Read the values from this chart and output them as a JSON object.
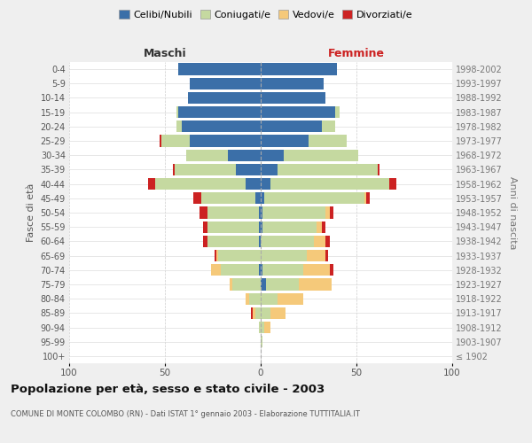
{
  "age_groups": [
    "100+",
    "95-99",
    "90-94",
    "85-89",
    "80-84",
    "75-79",
    "70-74",
    "65-69",
    "60-64",
    "55-59",
    "50-54",
    "45-49",
    "40-44",
    "35-39",
    "30-34",
    "25-29",
    "20-24",
    "15-19",
    "10-14",
    "5-9",
    "0-4"
  ],
  "birth_years": [
    "≤ 1902",
    "1903-1907",
    "1908-1912",
    "1913-1917",
    "1918-1922",
    "1923-1927",
    "1928-1932",
    "1933-1937",
    "1938-1942",
    "1943-1947",
    "1948-1952",
    "1953-1957",
    "1958-1962",
    "1963-1967",
    "1968-1972",
    "1973-1977",
    "1978-1982",
    "1983-1987",
    "1988-1992",
    "1993-1997",
    "1998-2002"
  ],
  "maschi": {
    "celibe": [
      0,
      0,
      0,
      0,
      0,
      0,
      1,
      0,
      1,
      1,
      1,
      3,
      8,
      13,
      17,
      37,
      41,
      43,
      38,
      37,
      43
    ],
    "coniugato": [
      0,
      0,
      1,
      3,
      6,
      15,
      20,
      22,
      27,
      27,
      27,
      28,
      47,
      32,
      22,
      15,
      3,
      1,
      0,
      0,
      0
    ],
    "vedovo": [
      0,
      0,
      0,
      1,
      2,
      1,
      5,
      1,
      0,
      0,
      0,
      0,
      0,
      0,
      0,
      0,
      0,
      0,
      0,
      0,
      0
    ],
    "divorziato": [
      0,
      0,
      0,
      1,
      0,
      0,
      0,
      1,
      2,
      2,
      4,
      4,
      4,
      1,
      0,
      1,
      0,
      0,
      0,
      0,
      0
    ]
  },
  "femmine": {
    "nubile": [
      0,
      0,
      0,
      0,
      0,
      3,
      1,
      0,
      0,
      1,
      1,
      2,
      5,
      9,
      12,
      25,
      32,
      39,
      34,
      33,
      40
    ],
    "coniugata": [
      0,
      1,
      2,
      5,
      9,
      17,
      21,
      24,
      28,
      28,
      33,
      52,
      62,
      52,
      39,
      20,
      7,
      2,
      0,
      0,
      0
    ],
    "vedova": [
      0,
      0,
      3,
      8,
      13,
      17,
      14,
      10,
      6,
      3,
      2,
      1,
      0,
      0,
      0,
      0,
      0,
      0,
      0,
      0,
      0
    ],
    "divorziata": [
      0,
      0,
      0,
      0,
      0,
      0,
      2,
      1,
      2,
      2,
      2,
      2,
      4,
      1,
      0,
      0,
      0,
      0,
      0,
      0,
      0
    ]
  },
  "colors": {
    "celibe": "#3b6fa8",
    "coniugato": "#c5d9a0",
    "vedovo": "#f5c97a",
    "divorziato": "#cc2222"
  },
  "xlim": 100,
  "title": "Popolazione per età, sesso e stato civile - 2003",
  "subtitle": "COMUNE DI MONTE COLOMBO (RN) - Dati ISTAT 1° gennaio 2003 - Elaborazione TUTTITALIA.IT",
  "ylabel_left": "Fasce di età",
  "ylabel_right": "Anni di nascita",
  "xlabel_maschi": "Maschi",
  "xlabel_femmine": "Femmine",
  "legend_labels": [
    "Celibi/Nubili",
    "Coniugati/e",
    "Vedovi/e",
    "Divorziati/e"
  ],
  "bg_color": "#efefef",
  "plot_bg": "#ffffff"
}
